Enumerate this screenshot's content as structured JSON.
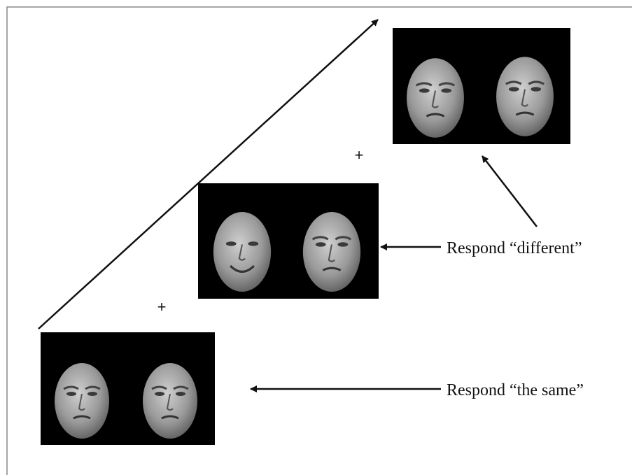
{
  "fixations": [
    "+",
    "+"
  ],
  "responses": {
    "different": "Respond “different”",
    "same": "Respond “the same”"
  }
}
